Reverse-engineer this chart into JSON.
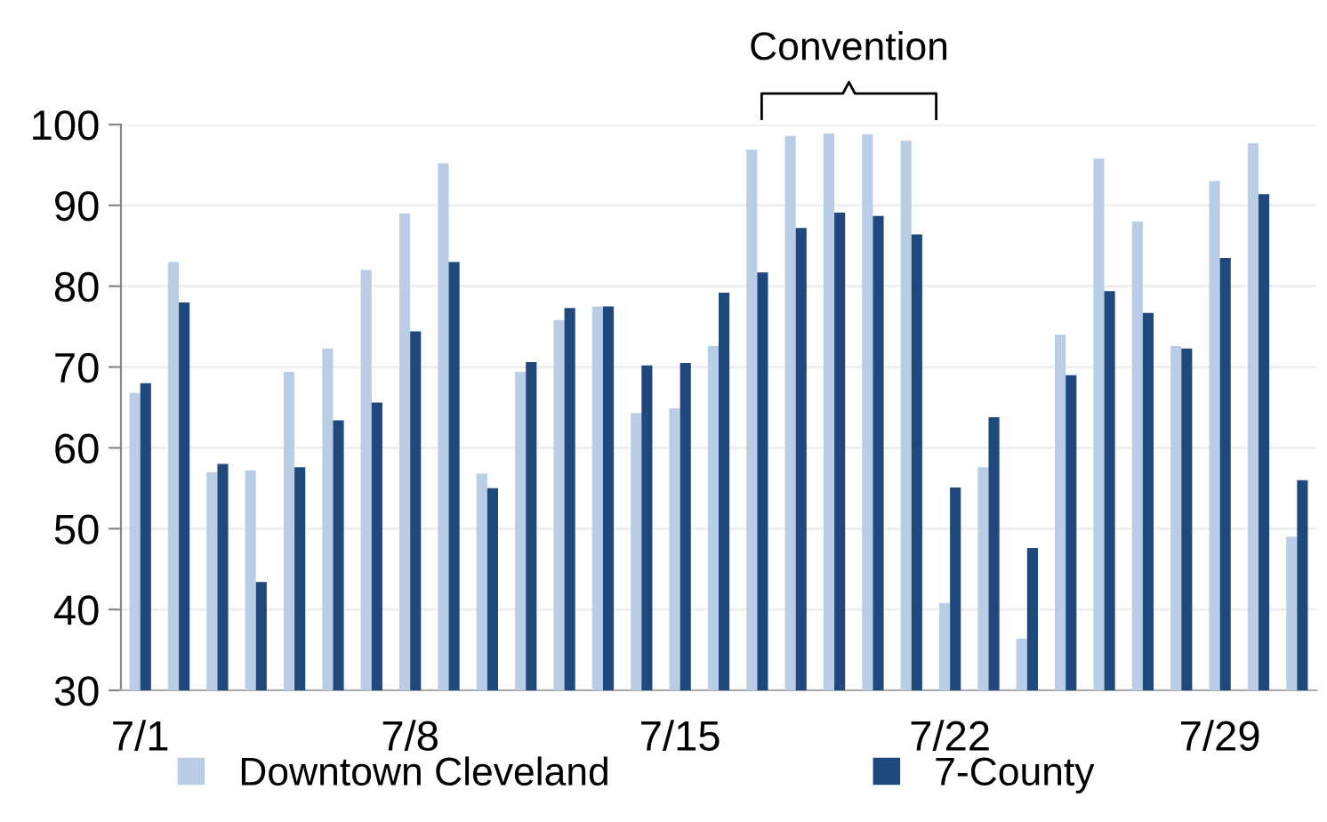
{
  "chart_data": {
    "type": "bar",
    "categories": [
      "7/1",
      null,
      null,
      null,
      null,
      null,
      null,
      "7/8",
      null,
      null,
      null,
      null,
      null,
      null,
      "7/15",
      null,
      null,
      null,
      null,
      null,
      null,
      "7/22",
      null,
      null,
      null,
      null,
      null,
      null,
      "7/29",
      null,
      null
    ],
    "series": [
      {
        "name": "Downtown Cleveland",
        "color": "#b9cde5",
        "values": [
          66.8,
          83,
          57,
          57.2,
          69.4,
          72.3,
          82,
          89,
          95.2,
          56.8,
          69.4,
          75.8,
          77.5,
          64.3,
          64.9,
          72.6,
          96.9,
          98.6,
          98.9,
          98.8,
          98,
          40.8,
          57.6,
          36.4,
          74,
          95.8,
          88,
          72.6,
          93,
          97.7,
          49
        ]
      },
      {
        "name": "7-County",
        "color": "#1f497d",
        "values": [
          68,
          78,
          58,
          43.4,
          57.6,
          63.4,
          65.6,
          74.4,
          83,
          55,
          70.6,
          77.3,
          77.5,
          70.2,
          70.5,
          79.2,
          81.7,
          87.2,
          89.1,
          88.7,
          86.4,
          55.1,
          63.8,
          47.6,
          69,
          79.4,
          76.7,
          72.3,
          83.5,
          91.4,
          56
        ]
      }
    ],
    "ylim": [
      30,
      100
    ],
    "yticks": [
      30,
      40,
      50,
      60,
      70,
      80,
      90,
      100
    ],
    "grid": "y",
    "legend": "bottom",
    "annotations": [
      "Convention"
    ]
  }
}
